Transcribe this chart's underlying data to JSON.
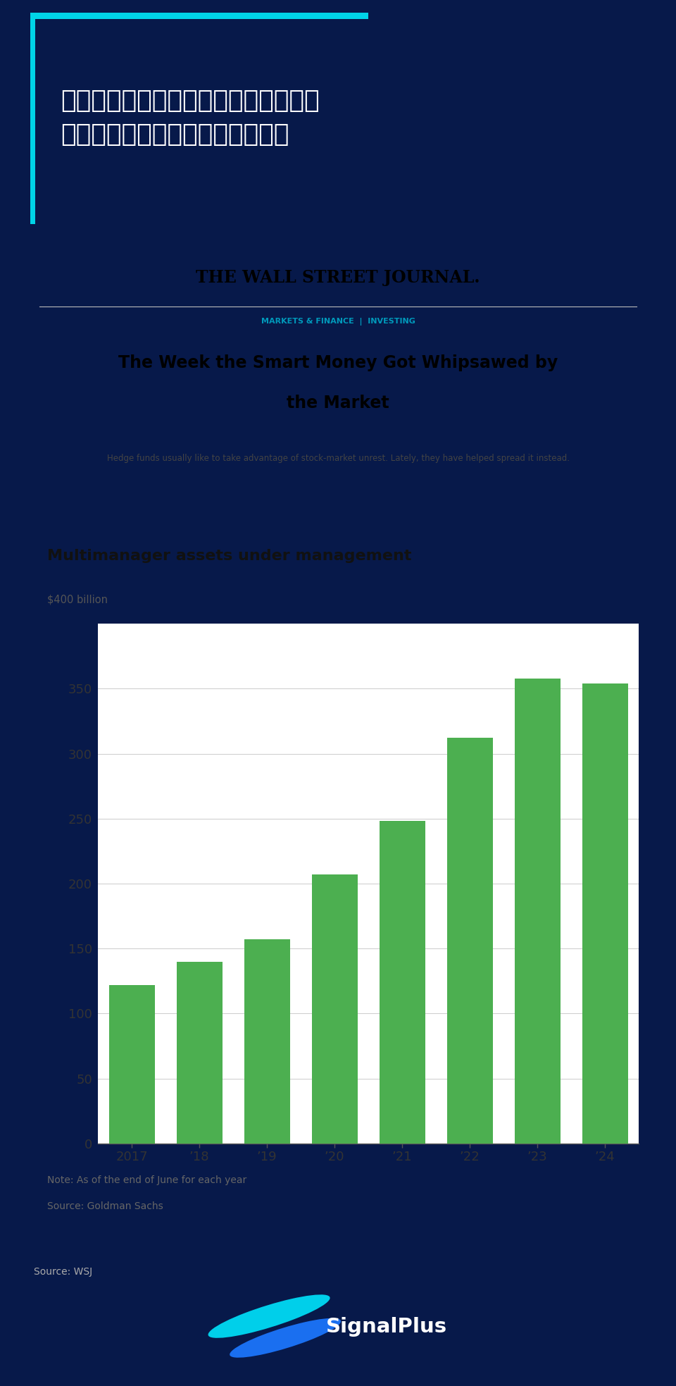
{
  "bg_color": "#07194a",
  "title_chinese": "对冲基金表现糟糕，再次证明在市场极\n端情况下几乎没有真正的「对冲」",
  "wsj_header": "THE WALL STREET JOURNAL.",
  "wsj_category": "MARKETS & FINANCE  |  INVESTING",
  "wsj_title_line1": "The Week the Smart Money Got Whipsawed by",
  "wsj_title_line2": "the Market",
  "wsj_subtitle": "Hedge funds usually like to take advantage of stock-market unrest. Lately, they have helped spread it instead.",
  "chart_title": "Multimanager assets under management",
  "chart_ylabel": "$400 billion",
  "chart_yticks": [
    0,
    50,
    100,
    150,
    200,
    250,
    300,
    350
  ],
  "chart_ylim": [
    0,
    400
  ],
  "chart_categories": [
    "2017",
    "’18",
    "’19",
    "’20",
    "’21",
    "’22",
    "’23",
    "’24"
  ],
  "chart_values": [
    122,
    140,
    157,
    207,
    248,
    312,
    358,
    354
  ],
  "bar_color": "#4caf50",
  "chart_note_line1": "Note: As of the end of June for each year",
  "chart_note_line2": "Source: Goldman Sachs",
  "source_label": "Source: WSJ",
  "cyan_accent": "#00d4e8",
  "grid_color": "#cccccc",
  "white": "#ffffff",
  "light_gray_bg": "#f7f7f7"
}
